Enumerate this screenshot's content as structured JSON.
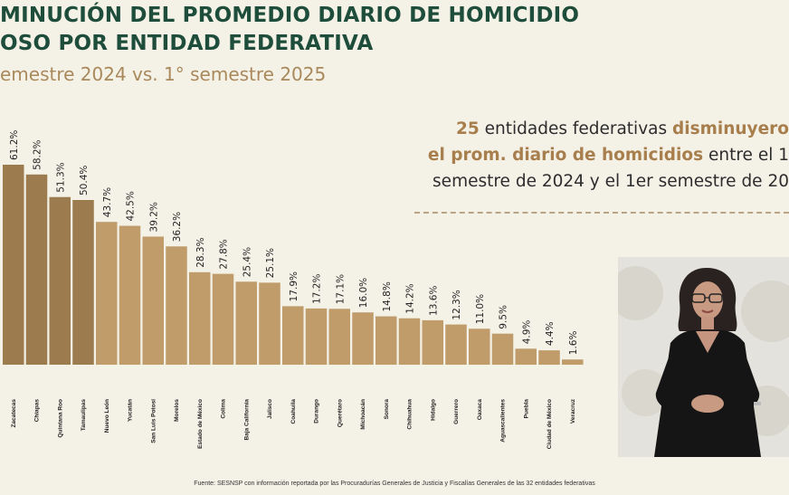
{
  "header": {
    "title_line1": "MINUCIÓN DEL PROMEDIO DIARIO DE HOMICIDIO",
    "title_line2": "OSO POR ENTIDAD FEDERATIVA",
    "subtitle": "emestre 2024 vs. 1° semestre 2025"
  },
  "callout": {
    "count": "25",
    "t1": " entidades federativas ",
    "hl1": "disminuyero",
    "hl2": "el prom. diario de homicidios",
    "t2": " entre el 1",
    "line3": "semestre de 2024 y el 1er semestre de 20"
  },
  "source": "Fuente: SESNSP con información reportada por las Procuradurías Generales de Justicia y Fiscalías Generales de las 32 entidades federativas",
  "colors": {
    "dark": "#9c7b4f",
    "light": "#c09c6b",
    "title": "#1f4d3b",
    "subtitle": "#a9895c"
  },
  "chart_data": {
    "type": "bar",
    "categories": [
      "Zacatecas",
      "Chiapas",
      "Quintana Roo",
      "Tamaulipas",
      "Nuevo León",
      "Yucatán",
      "San Luis Potosí",
      "Morelos",
      "Estado de México",
      "Colima",
      "Baja California",
      "Jalisco",
      "Coahuila",
      "Durango",
      "Querétaro",
      "Michoacán",
      "Sonora",
      "Chihuahua",
      "Hidalgo",
      "Guerrero",
      "Oaxaca",
      "Aguascalientes",
      "Puebla",
      "Ciudad de México",
      "Veracruz"
    ],
    "values": [
      61.2,
      58.2,
      51.3,
      50.4,
      43.7,
      42.5,
      39.2,
      36.2,
      28.3,
      27.8,
      25.4,
      25.1,
      17.9,
      17.2,
      17.1,
      16.0,
      14.8,
      14.2,
      13.6,
      12.3,
      11.0,
      9.5,
      4.9,
      4.4,
      1.6
    ],
    "labels": [
      "61.2%",
      "58.2%",
      "51.3%",
      "50.4%",
      "43.7%",
      "42.5%",
      "39.2%",
      "36.2%",
      "28.3%",
      "27.8%",
      "25.4%",
      "25.1%",
      "17.9%",
      "17.2%",
      "17.1%",
      "16.0%",
      "14.8%",
      "14.2%",
      "13.6%",
      "12.3%",
      "11.0%",
      "9.5%",
      "4.9%",
      "4.4%",
      "1.6%"
    ],
    "dark_count": 4,
    "ylim": [
      0,
      70
    ]
  }
}
